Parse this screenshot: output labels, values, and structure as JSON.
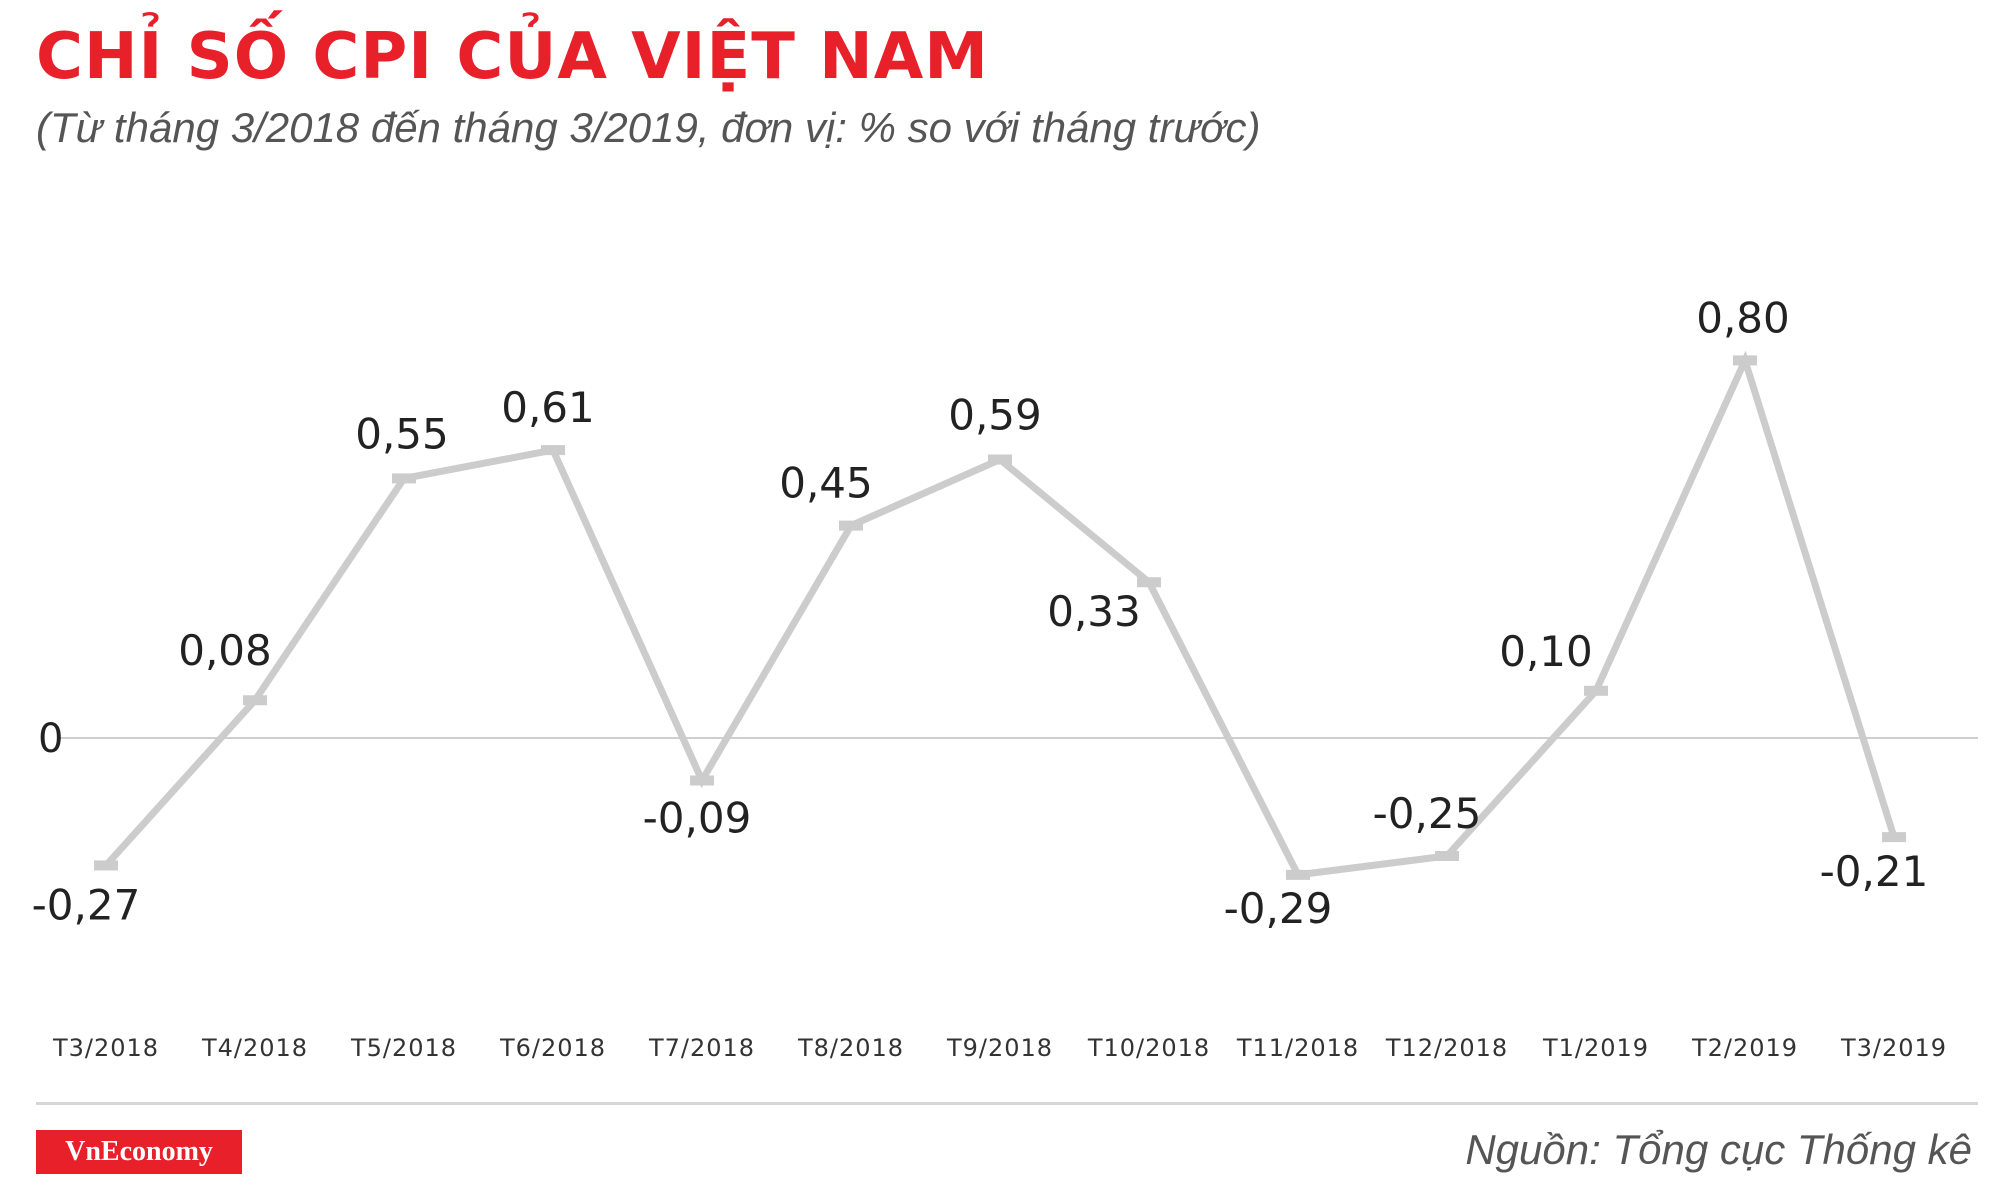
{
  "title": "CHỈ SỐ CPI CỦA VIỆT NAM",
  "subtitle": "(Từ tháng 3/2018 đến tháng 3/2019, đơn vị: % so với tháng trước)",
  "brand": {
    "logo_text": "VnEconomy",
    "color": "#e8202a"
  },
  "source": "Nguồn: Tổng cục Thống kê",
  "colors": {
    "line": "#cccccc",
    "zero_line": "#cfcfcf",
    "label": "#222222",
    "tick": "#333333"
  },
  "chart_data": {
    "type": "line",
    "categories": [
      "T3/2018",
      "T4/2018",
      "T5/2018",
      "T6/2018",
      "T7/2018",
      "T8/2018",
      "T9/2018",
      "T10/2018",
      "T11/2018",
      "T12/2018",
      "T1/2019",
      "T2/2019",
      "T3/2019"
    ],
    "values": [
      -0.27,
      0.08,
      0.55,
      0.61,
      -0.09,
      0.45,
      0.59,
      0.33,
      -0.29,
      -0.25,
      0.1,
      0.8,
      -0.21
    ],
    "data_labels": [
      "-0,27",
      "0,08",
      "0,55",
      "0,61",
      "-0,09",
      "0,45",
      "0,59",
      "0,33",
      "-0,29",
      "-0,25",
      "0,10",
      "0,80",
      "-0,21"
    ],
    "y_tick_labels": [
      "0"
    ],
    "y_ticks": [
      0
    ],
    "grid": false
  }
}
